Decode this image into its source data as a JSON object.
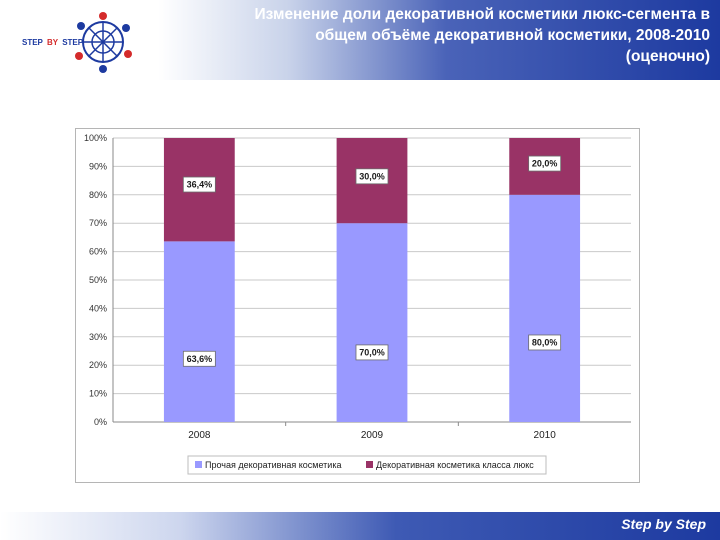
{
  "header": {
    "title": "Изменение доли декоративной косметики люкс-сегмента в общем объёме декоративной косметики, 2008-2010 (оценочно)",
    "logo_text_left": "STEP",
    "logo_text_mid": "BY",
    "logo_text_right": "STEP"
  },
  "footer": {
    "brand": "Step by Step"
  },
  "chart_data": {
    "type": "bar",
    "stacked": true,
    "categories": [
      "2008",
      "2009",
      "2010"
    ],
    "series": [
      {
        "name": "Прочая декоративная косметика",
        "color": "#9999ff",
        "values": [
          63.6,
          70.0,
          80.0
        ],
        "labels": [
          "63,6%",
          "70,0%",
          "80,0%"
        ]
      },
      {
        "name": "Декоративная косметика класса люкс",
        "color": "#993366",
        "values": [
          36.4,
          30.0,
          20.0
        ],
        "labels": [
          "36,4%",
          "30,0%",
          "20,0%"
        ]
      }
    ],
    "ylim": [
      0,
      100
    ],
    "yticks": [
      "0%",
      "10%",
      "20%",
      "30%",
      "40%",
      "50%",
      "60%",
      "70%",
      "80%",
      "90%",
      "100%"
    ],
    "grid": true,
    "legend_position": "bottom"
  }
}
